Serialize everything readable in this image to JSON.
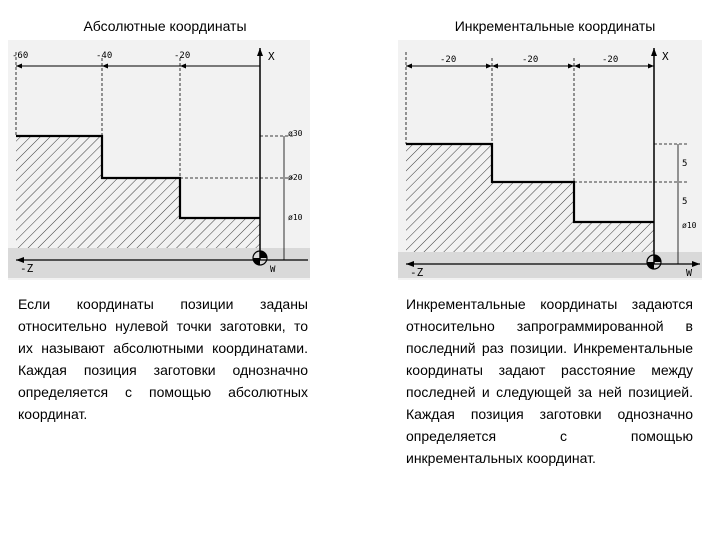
{
  "left": {
    "title": "Абсолютные координаты",
    "axis_x": "X",
    "axis_neg_z": "-Z",
    "origin_label": "W",
    "top_ticks": [
      "-60",
      "-40",
      "-20"
    ],
    "right_labels": [
      "ø30",
      "ø20",
      "ø10"
    ],
    "paragraph": "Если координаты позиции заданы относительно нулевой точки заготовки, то их называют абсолютными координатами. Каждая позиция заготовки однозначно определяется с помощью абсолютных координат."
  },
  "right": {
    "title": "Инкрементальные координаты",
    "axis_x": "X",
    "axis_neg_z": "-Z",
    "axis_w": "W",
    "top_ticks": [
      "-20",
      "-20",
      "-20"
    ],
    "right_labels": [
      "5",
      "5",
      "ø10"
    ],
    "paragraph": "Инкрементальные координаты задаются относительно запрограммированной в последний раз позиции. Инкрементальные координаты задают расстояние между последней и следующей за ней позицией. Каждая позиция заготовки однозначно определяется с помощью инкрементальных координат."
  },
  "colors": {
    "hatch": "#3a3a3a",
    "panel": "#f2f2f2",
    "axis_bar": "#d9d9d9"
  }
}
